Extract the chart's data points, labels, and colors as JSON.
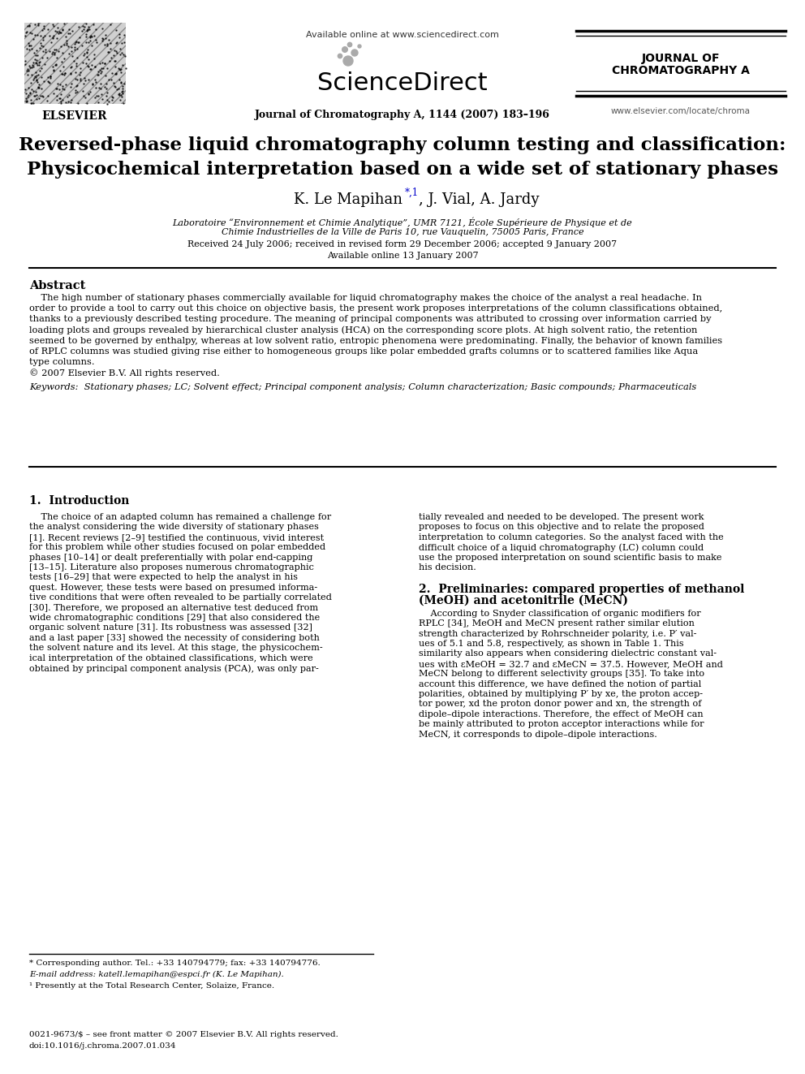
{
  "bg_color": "#ffffff",
  "page_width": 9.92,
  "page_height": 13.23,
  "header": {
    "available_online": "Available online at www.sciencedirect.com",
    "sciencedirect": "ScienceDirect",
    "journal_line": "Journal of Chromatography A, 1144 (2007) 183–196",
    "journal_name_line1": "JOURNAL OF",
    "journal_name_line2": "CHROMATOGRAPHY A",
    "elsevier_text": "ELSEVIER",
    "website": "www.elsevier.com/locate/chroma"
  },
  "article_title_line1": "Reversed-phase liquid chromatography column testing and classification:",
  "article_title_line2": "Physicochemical interpretation based on a wide set of stationary phases",
  "affiliation_line1": "Laboratoire “Environnement et Chimie Analytique”, UMR 7121, École Supérieure de Physique et de",
  "affiliation_line2": "Chimie Industrielles de la Ville de Paris 10, rue Vauquelin, 75005 Paris, France",
  "received": "Received 24 July 2006; received in revised form 29 December 2006; accepted 9 January 2007",
  "available_online2": "Available online 13 January 2007",
  "abstract_heading": "Abstract",
  "copyright": "© 2007 Elsevier B.V. All rights reserved.",
  "keywords": "Keywords:  Stationary phases; LC; Solvent effect; Principal component analysis; Column characterization; Basic compounds; Pharmaceuticals",
  "footnote_star": "* Corresponding author. Tel.: +33 140794779; fax: +33 140794776.",
  "footnote_email": "E-mail address: katell.lemapihan@espci.fr (K. Le Mapihan).",
  "footnote_1": "¹ Presently at the Total Research Center, Solaize, France.",
  "footer_issn": "0021-9673/$ – see front matter © 2007 Elsevier B.V. All rights reserved.",
  "footer_doi": "doi:10.1016/j.chroma.2007.01.034"
}
